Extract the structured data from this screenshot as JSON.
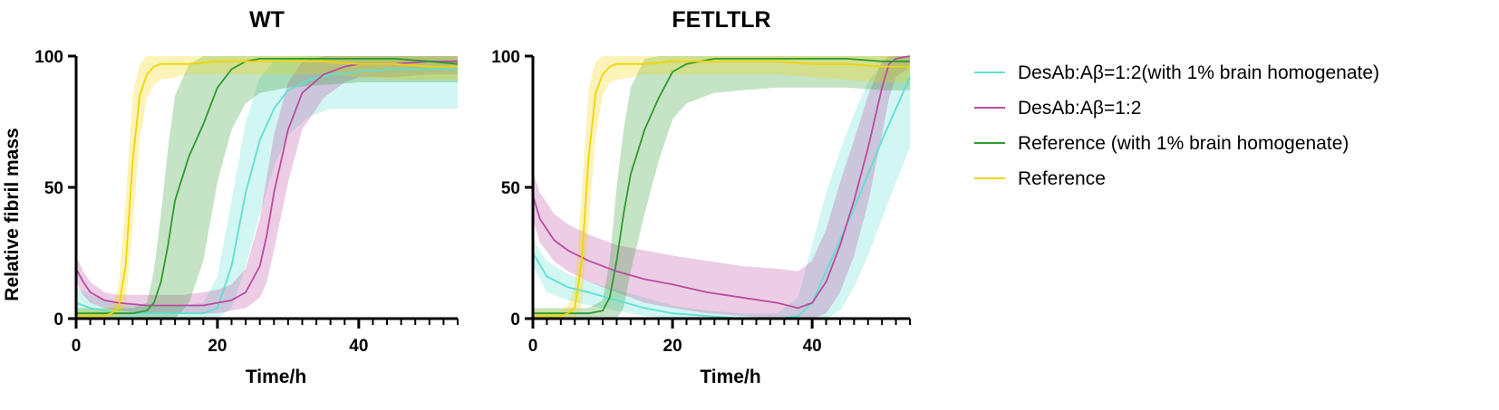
{
  "chart_data": [
    {
      "type": "line",
      "title": "WT",
      "xlabel": "Time/h",
      "ylabel": "Relative fibril mass",
      "xlim": [
        0,
        54
      ],
      "ylim": [
        0,
        100
      ],
      "xticks": [
        "0",
        "20",
        "40"
      ],
      "yticks": [
        "0",
        "50",
        "100"
      ],
      "grid": false,
      "series": [
        {
          "name": "DesAb:Aβ=1:2(with 1% brain homogenate)",
          "color": "#5ee0d2",
          "x": [
            0,
            2,
            4,
            6,
            10,
            15,
            18,
            20,
            22,
            24,
            26,
            28,
            30,
            33,
            36,
            40,
            45,
            50,
            54
          ],
          "y": [
            6,
            4,
            3,
            2,
            2,
            2,
            2,
            4,
            20,
            48,
            68,
            80,
            87,
            91,
            93,
            94,
            95,
            95,
            95
          ],
          "upper": [
            12,
            9,
            7,
            6,
            5,
            5,
            6,
            16,
            45,
            75,
            92,
            98,
            99,
            100,
            100,
            100,
            100,
            100,
            100
          ],
          "lower": [
            0,
            0,
            0,
            0,
            0,
            0,
            0,
            0,
            4,
            20,
            40,
            58,
            70,
            77,
            80,
            80,
            80,
            80,
            80
          ]
        },
        {
          "name": "DesAb:Aβ=1:2",
          "color": "#b94ca0",
          "x": [
            0,
            1,
            2,
            4,
            6,
            10,
            15,
            18,
            20,
            22,
            24,
            26,
            27,
            28,
            30,
            32,
            35,
            38,
            40,
            45,
            50,
            54
          ],
          "y": [
            19,
            14,
            10,
            7,
            6,
            5,
            5,
            5,
            6,
            7,
            10,
            20,
            32,
            48,
            72,
            86,
            93,
            96,
            97,
            97,
            98,
            98
          ],
          "upper": [
            24,
            18,
            14,
            10,
            9,
            9,
            9,
            10,
            11,
            13,
            19,
            38,
            54,
            70,
            90,
            98,
            100,
            100,
            100,
            100,
            100,
            100
          ],
          "lower": [
            14,
            9,
            6,
            4,
            3,
            2,
            2,
            2,
            2,
            3,
            4,
            8,
            14,
            26,
            52,
            72,
            84,
            90,
            92,
            92,
            93,
            93
          ]
        },
        {
          "name": "Reference (with 1% brain homogenate)",
          "color": "#2e9a2e",
          "x": [
            0,
            2,
            5,
            8,
            10,
            11,
            12,
            13,
            14,
            16,
            18,
            20,
            22,
            24,
            26,
            30,
            35,
            40,
            45,
            50,
            54
          ],
          "y": [
            2,
            2,
            2,
            2,
            3,
            6,
            14,
            28,
            45,
            62,
            74,
            88,
            95,
            98,
            99,
            99,
            99,
            99,
            99,
            98,
            97
          ],
          "upper": [
            4,
            4,
            4,
            4,
            6,
            18,
            40,
            65,
            85,
            97,
            100,
            100,
            100,
            100,
            100,
            100,
            100,
            100,
            100,
            100,
            100
          ],
          "lower": [
            0,
            0,
            0,
            0,
            0,
            0,
            0,
            0,
            0,
            6,
            22,
            52,
            72,
            82,
            86,
            88,
            89,
            90,
            90,
            90,
            90
          ]
        },
        {
          "name": "Reference",
          "color": "#f2d400",
          "x": [
            0,
            2,
            4,
            5,
            6,
            7,
            8,
            9,
            10,
            11,
            12,
            14,
            16,
            20,
            25,
            30,
            35,
            40,
            45,
            50,
            54
          ],
          "y": [
            1,
            1,
            1,
            2,
            4,
            20,
            60,
            85,
            93,
            96,
            97,
            97,
            97,
            98,
            98,
            98,
            98,
            97,
            97,
            96,
            96
          ],
          "upper": [
            3,
            3,
            3,
            5,
            12,
            45,
            85,
            97,
            100,
            100,
            100,
            100,
            100,
            100,
            100,
            100,
            100,
            100,
            100,
            100,
            100
          ],
          "lower": [
            0,
            0,
            0,
            0,
            0,
            5,
            35,
            68,
            84,
            89,
            91,
            92,
            93,
            93,
            93,
            93,
            93,
            92,
            91,
            91,
            91
          ]
        }
      ]
    },
    {
      "type": "line",
      "title": "FETLTLR",
      "xlabel": "Time/h",
      "ylabel": "",
      "xlim": [
        0,
        54
      ],
      "ylim": [
        0,
        100
      ],
      "xticks": [
        "0",
        "20",
        "40"
      ],
      "yticks": [
        "0",
        "50",
        "100"
      ],
      "grid": false,
      "series": [
        {
          "name": "DesAb:Aβ=1:2(with 1% brain homogenate)",
          "color": "#5ee0d2",
          "x": [
            0,
            2,
            5,
            8,
            12,
            16,
            20,
            25,
            30,
            35,
            38,
            40,
            42,
            44,
            46,
            48,
            50,
            52,
            54
          ],
          "y": [
            25,
            16,
            12,
            10,
            7,
            4,
            2,
            1,
            0,
            0,
            1,
            6,
            18,
            30,
            42,
            55,
            68,
            80,
            92
          ],
          "upper": [
            30,
            22,
            17,
            14,
            11,
            8,
            5,
            3,
            2,
            2,
            8,
            28,
            48,
            64,
            78,
            90,
            97,
            100,
            100
          ],
          "lower": [
            20,
            10,
            7,
            5,
            3,
            1,
            0,
            0,
            0,
            0,
            0,
            0,
            0,
            3,
            12,
            24,
            38,
            52,
            65
          ]
        },
        {
          "name": "DesAb:Aβ=1:2",
          "color": "#b94ca0",
          "x": [
            0,
            1,
            3,
            5,
            8,
            12,
            16,
            20,
            25,
            30,
            35,
            38,
            40,
            42,
            44,
            46,
            48,
            50,
            51,
            52,
            54
          ],
          "y": [
            47,
            38,
            30,
            26,
            22,
            18,
            15,
            13,
            10,
            8,
            6,
            4,
            6,
            14,
            28,
            45,
            65,
            88,
            97,
            99,
            100
          ],
          "upper": [
            56,
            48,
            40,
            36,
            32,
            28,
            26,
            24,
            22,
            20,
            19,
            18,
            22,
            34,
            52,
            68,
            85,
            98,
            100,
            100,
            100
          ],
          "lower": [
            38,
            29,
            22,
            18,
            14,
            10,
            6,
            4,
            2,
            1,
            0,
            0,
            0,
            2,
            10,
            24,
            44,
            70,
            84,
            92,
            96
          ]
        },
        {
          "name": "Reference (with 1% brain homogenate)",
          "color": "#2e9a2e",
          "x": [
            0,
            2,
            5,
            8,
            10,
            11,
            12,
            13,
            14,
            16,
            18,
            20,
            22,
            24,
            26,
            30,
            35,
            40,
            45,
            50,
            54
          ],
          "y": [
            2,
            2,
            2,
            2,
            3,
            8,
            22,
            40,
            55,
            72,
            84,
            94,
            97,
            98,
            99,
            99,
            99,
            99,
            99,
            98,
            98
          ],
          "upper": [
            4,
            4,
            4,
            4,
            7,
            22,
            50,
            72,
            88,
            99,
            100,
            100,
            100,
            100,
            100,
            100,
            100,
            100,
            100,
            100,
            100
          ],
          "lower": [
            0,
            0,
            0,
            0,
            0,
            0,
            0,
            4,
            18,
            40,
            60,
            76,
            82,
            84,
            86,
            87,
            88,
            88,
            88,
            87,
            87
          ]
        },
        {
          "name": "Reference",
          "color": "#f2d400",
          "x": [
            0,
            2,
            4,
            5,
            6,
            7,
            8,
            9,
            10,
            11,
            12,
            14,
            16,
            20,
            25,
            30,
            35,
            40,
            45,
            50,
            54
          ],
          "y": [
            1,
            1,
            1,
            2,
            4,
            22,
            62,
            86,
            93,
            96,
            97,
            97,
            97,
            98,
            98,
            98,
            98,
            97,
            97,
            96,
            96
          ],
          "upper": [
            3,
            3,
            3,
            5,
            12,
            48,
            88,
            98,
            100,
            100,
            100,
            100,
            100,
            100,
            100,
            100,
            100,
            100,
            100,
            100,
            100
          ],
          "lower": [
            0,
            0,
            0,
            0,
            0,
            5,
            36,
            70,
            85,
            90,
            91,
            92,
            93,
            93,
            93,
            93,
            93,
            92,
            91,
            90,
            90
          ]
        }
      ]
    }
  ],
  "legend": {
    "placement": "right",
    "entries": [
      {
        "label": "DesAb:Aβ=1:2(with 1% brain homogenate)",
        "color": "#5ee0d2"
      },
      {
        "label": "DesAb:Aβ=1:2",
        "color": "#b94ca0"
      },
      {
        "label": "Reference (with 1% brain homogenate)",
        "color": "#2e9a2e"
      },
      {
        "label": "Reference",
        "color": "#f2d400"
      }
    ]
  }
}
